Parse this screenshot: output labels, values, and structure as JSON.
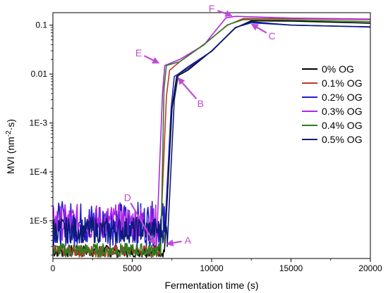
{
  "chart_data": {
    "type": "line",
    "xlabel": "Fermentation time (s)",
    "ylabel_prefix": "MVI (nm",
    "ylabel_sup": "-2",
    "ylabel_suffix": "·s)",
    "xlim": [
      0,
      20000
    ],
    "ylim": [
      1.7e-06,
      0.18
    ],
    "yscale": "log",
    "x_ticks": [
      0,
      5000,
      10000,
      15000,
      20000
    ],
    "x_tick_labels": [
      "0",
      "5000",
      "10000",
      "15000",
      "20000"
    ],
    "y_ticks": [
      1e-05,
      0.0001,
      0.001,
      0.01,
      0.1
    ],
    "y_tick_labels": [
      "1E-5",
      "1E-4",
      "1E-3",
      "0.01",
      "0.1"
    ],
    "grid": false,
    "legend_position": "right",
    "series": [
      {
        "name": "0% OG",
        "color": "#000000",
        "noise_floor": [
          1.8e-06,
          3.2e-06
        ],
        "points": [
          [
            0,
            2.6e-06
          ],
          [
            6500,
            2.8e-06
          ],
          [
            7050,
            3.2e-06
          ],
          [
            7500,
            0.002
          ],
          [
            7800,
            0.009
          ],
          [
            8500,
            0.012
          ],
          [
            10000,
            0.03
          ],
          [
            11500,
            0.09
          ],
          [
            12500,
            0.12
          ],
          [
            15000,
            0.12
          ],
          [
            20000,
            0.11
          ]
        ]
      },
      {
        "name": "0.1% OG",
        "color": "#c0392b",
        "noise_floor": [
          1.8e-06,
          3.2e-06
        ],
        "points": [
          [
            0,
            2.5e-06
          ],
          [
            6400,
            2.6e-06
          ],
          [
            6750,
            2.9e-06
          ],
          [
            7150,
            0.0035
          ],
          [
            7350,
            0.012
          ],
          [
            8000,
            0.018
          ],
          [
            9500,
            0.04
          ],
          [
            11000,
            0.1
          ],
          [
            12000,
            0.14
          ],
          [
            15000,
            0.14
          ],
          [
            20000,
            0.13
          ]
        ]
      },
      {
        "name": "0.2% OG",
        "color": "#1f1fc8",
        "noise_floor": [
          3e-06,
          2.5e-05
        ],
        "points": [
          [
            0,
            8e-06
          ],
          [
            6500,
            9e-06
          ],
          [
            7050,
            6e-06
          ],
          [
            7450,
            0.002
          ],
          [
            7650,
            0.009
          ],
          [
            8500,
            0.013
          ],
          [
            10000,
            0.03
          ],
          [
            11500,
            0.09
          ],
          [
            12500,
            0.11
          ],
          [
            15000,
            0.1
          ],
          [
            20000,
            0.09
          ]
        ]
      },
      {
        "name": "0.3% OG",
        "color": "#b026e8",
        "noise_floor": [
          4e-06,
          2.2e-05
        ],
        "points": [
          [
            0,
            6e-06
          ],
          [
            6300,
            7e-06
          ],
          [
            6500,
            2e-06
          ],
          [
            6900,
            0.004
          ],
          [
            7050,
            0.015
          ],
          [
            8000,
            0.02
          ],
          [
            9500,
            0.04
          ],
          [
            10900,
            0.14
          ],
          [
            11500,
            0.15
          ],
          [
            15000,
            0.14
          ],
          [
            20000,
            0.13
          ]
        ]
      },
      {
        "name": "0.4% OG",
        "color": "#2e7d1e",
        "noise_floor": [
          1.8e-06,
          3.5e-06
        ],
        "points": [
          [
            0,
            2.4e-06
          ],
          [
            6600,
            2.5e-06
          ],
          [
            6800,
            2.8e-06
          ],
          [
            7000,
            0.005
          ],
          [
            7150,
            0.015
          ],
          [
            8000,
            0.018
          ],
          [
            9500,
            0.04
          ],
          [
            11000,
            0.1
          ],
          [
            12000,
            0.13
          ],
          [
            15000,
            0.13
          ],
          [
            20000,
            0.12
          ]
        ]
      },
      {
        "name": "0.5% OG",
        "color": "#0a1a78",
        "noise_floor": [
          3.5e-06,
          1.2e-05
        ],
        "points": [
          [
            0,
            5e-06
          ],
          [
            6950,
            5.5e-06
          ],
          [
            7200,
            3e-06
          ],
          [
            7650,
            0.003
          ],
          [
            7900,
            0.01
          ],
          [
            8500,
            0.014
          ],
          [
            10000,
            0.03
          ],
          [
            11500,
            0.09
          ],
          [
            12500,
            0.12
          ],
          [
            15000,
            0.1
          ],
          [
            20000,
            0.09
          ]
        ]
      }
    ],
    "annotations": [
      {
        "label": "A",
        "x": 7050,
        "y": 3.3e-06,
        "text_x": 8500,
        "text_y": 4e-06,
        "color": "#c24bd6"
      },
      {
        "label": "B",
        "x": 7800,
        "y": 0.009,
        "text_x": 9300,
        "text_y": 0.0025,
        "color": "#c24bd6"
      },
      {
        "label": "C",
        "x": 12400,
        "y": 0.11,
        "text_x": 13800,
        "text_y": 0.06,
        "color": "#c24bd6"
      },
      {
        "label": "D",
        "x": 6500,
        "y": 3e-06,
        "text_x": 4700,
        "text_y": 3e-05,
        "color": "#c24bd6"
      },
      {
        "label": "E",
        "x": 6800,
        "y": 0.016,
        "text_x": 5400,
        "text_y": 0.027,
        "color": "#c24bd6"
      },
      {
        "label": "F",
        "x": 11400,
        "y": 0.15,
        "text_x": 10000,
        "text_y": 0.22,
        "color": "#c24bd6"
      }
    ]
  }
}
